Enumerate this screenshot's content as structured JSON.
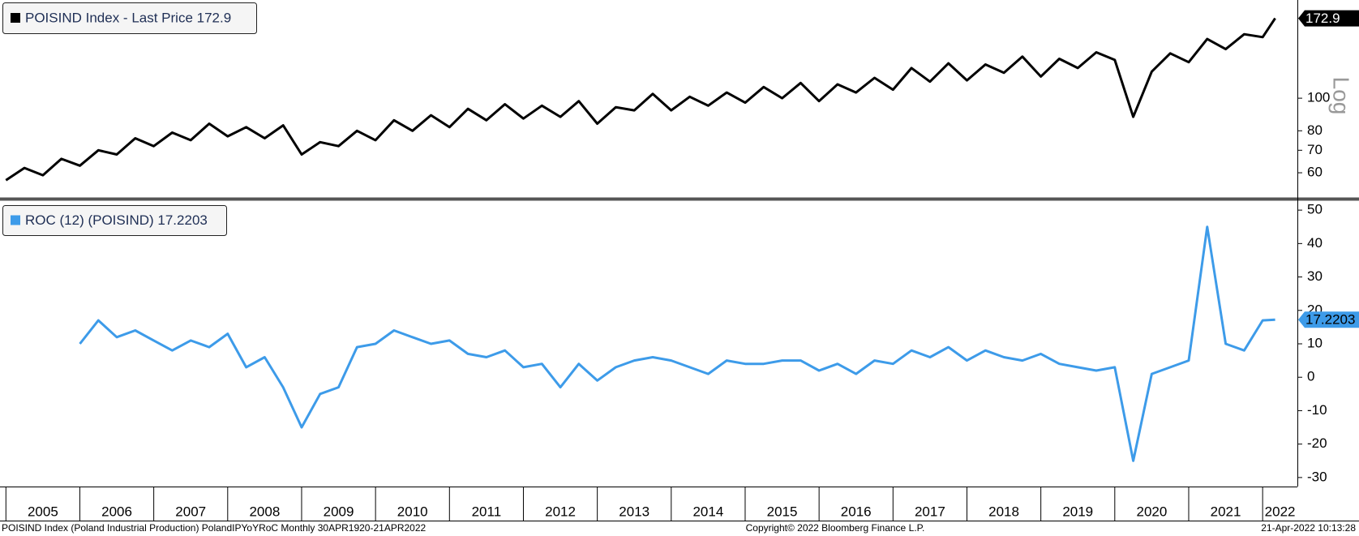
{
  "chart_data": [
    {
      "type": "line",
      "legend": "POISIND Index - Last Price 172.9",
      "log_scale": true,
      "axis_label": "Log",
      "x": [
        2005.0,
        2005.25,
        2005.5,
        2005.75,
        2006.0,
        2006.25,
        2006.5,
        2006.75,
        2007.0,
        2007.25,
        2007.5,
        2007.75,
        2008.0,
        2008.25,
        2008.5,
        2008.75,
        2009.0,
        2009.25,
        2009.5,
        2009.75,
        2010.0,
        2010.25,
        2010.5,
        2010.75,
        2011.0,
        2011.25,
        2011.5,
        2011.75,
        2012.0,
        2012.25,
        2012.5,
        2012.75,
        2013.0,
        2013.25,
        2013.5,
        2013.75,
        2014.0,
        2014.25,
        2014.5,
        2014.75,
        2015.0,
        2015.25,
        2015.5,
        2015.75,
        2016.0,
        2016.25,
        2016.5,
        2016.75,
        2017.0,
        2017.25,
        2017.5,
        2017.75,
        2018.0,
        2018.25,
        2018.5,
        2018.75,
        2019.0,
        2019.25,
        2019.5,
        2019.75,
        2020.0,
        2020.25,
        2020.5,
        2020.75,
        2021.0,
        2021.25,
        2021.5,
        2021.75,
        2022.0,
        2022.17
      ],
      "series": [
        {
          "name": "POISIND Index",
          "color": "#000000",
          "values": [
            57,
            62,
            59,
            66,
            63,
            70,
            68,
            76,
            72,
            79,
            75,
            84,
            77,
            82,
            76,
            83,
            68,
            74,
            72,
            80,
            75,
            86,
            80,
            89,
            82,
            93,
            86,
            96,
            87,
            95,
            88,
            98,
            84,
            94,
            92,
            103,
            92,
            101,
            95,
            104,
            97,
            108,
            100,
            111,
            98,
            110,
            104,
            115,
            106,
            123,
            112,
            127,
            113,
            126,
            119,
            133,
            116,
            131,
            123,
            137,
            130,
            88,
            120,
            136,
            128,
            150,
            140,
            155,
            152,
            172.9
          ]
        }
      ],
      "xlim": [
        2004.92,
        2022.47
      ],
      "ylim": [
        50.8,
        196
      ],
      "yticks": [
        60,
        70,
        80,
        100
      ]
    },
    {
      "type": "line",
      "legend": "ROC (12) (POISIND) 17.2203",
      "x": [
        2006.0,
        2006.25,
        2006.5,
        2006.75,
        2007.0,
        2007.25,
        2007.5,
        2007.75,
        2008.0,
        2008.25,
        2008.5,
        2008.75,
        2009.0,
        2009.25,
        2009.5,
        2009.75,
        2010.0,
        2010.25,
        2010.5,
        2010.75,
        2011.0,
        2011.25,
        2011.5,
        2011.75,
        2012.0,
        2012.25,
        2012.5,
        2012.75,
        2013.0,
        2013.25,
        2013.5,
        2013.75,
        2014.0,
        2014.25,
        2014.5,
        2014.75,
        2015.0,
        2015.25,
        2015.5,
        2015.75,
        2016.0,
        2016.25,
        2016.5,
        2016.75,
        2017.0,
        2017.25,
        2017.5,
        2017.75,
        2018.0,
        2018.25,
        2018.5,
        2018.75,
        2019.0,
        2019.25,
        2019.5,
        2019.75,
        2020.0,
        2020.25,
        2020.5,
        2020.75,
        2021.0,
        2021.25,
        2021.5,
        2021.75,
        2022.0,
        2022.17
      ],
      "series": [
        {
          "name": "ROC (12) (POISIND)",
          "color": "#3d9be9",
          "values": [
            10,
            17,
            12,
            14,
            11,
            8,
            11,
            9,
            13,
            3,
            6,
            -3,
            -15,
            -5,
            -3,
            9,
            10,
            14,
            12,
            10,
            11,
            7,
            6,
            8,
            3,
            4,
            -3,
            4,
            -1,
            3,
            5,
            6,
            5,
            3,
            1,
            5,
            4,
            4,
            5,
            5,
            2,
            4,
            1,
            5,
            4,
            8,
            6,
            9,
            5,
            8,
            6,
            5,
            7,
            4,
            3,
            2,
            3,
            -25,
            1,
            3,
            5,
            45,
            10,
            8,
            17,
            17.2203
          ]
        }
      ],
      "xlim": [
        2004.92,
        2022.47
      ],
      "ylim": [
        -32.7,
        52.7
      ],
      "yticks": [
        -30,
        -20,
        -10,
        0,
        10,
        20,
        30,
        40,
        50
      ],
      "xticks": [
        {
          "value": 2005,
          "label": "2005"
        },
        {
          "value": 2006,
          "label": "2006"
        },
        {
          "value": 2007,
          "label": "2007"
        },
        {
          "value": 2008,
          "label": "2008"
        },
        {
          "value": 2009,
          "label": "2009"
        },
        {
          "value": 2010,
          "label": "2010"
        },
        {
          "value": 2011,
          "label": "2011"
        },
        {
          "value": 2012,
          "label": "2012"
        },
        {
          "value": 2013,
          "label": "2013"
        },
        {
          "value": 2014,
          "label": "2014"
        },
        {
          "value": 2015,
          "label": "2015"
        },
        {
          "value": 2016,
          "label": "2016"
        },
        {
          "value": 2017,
          "label": "2017"
        },
        {
          "value": 2018,
          "label": "2018"
        },
        {
          "value": 2019,
          "label": "2019"
        },
        {
          "value": 2020,
          "label": "2020"
        },
        {
          "value": 2021,
          "label": "2021"
        },
        {
          "value": 2022,
          "label": "2022"
        }
      ]
    }
  ],
  "footer": {
    "left": "POISIND Index (Poland Industrial Production) PolandIPYoYRoC  Monthly 30APR1920-21APR2022",
    "center": "Copyright© 2022 Bloomberg Finance L.P.",
    "right": "21-Apr-2022 10:13:28"
  }
}
